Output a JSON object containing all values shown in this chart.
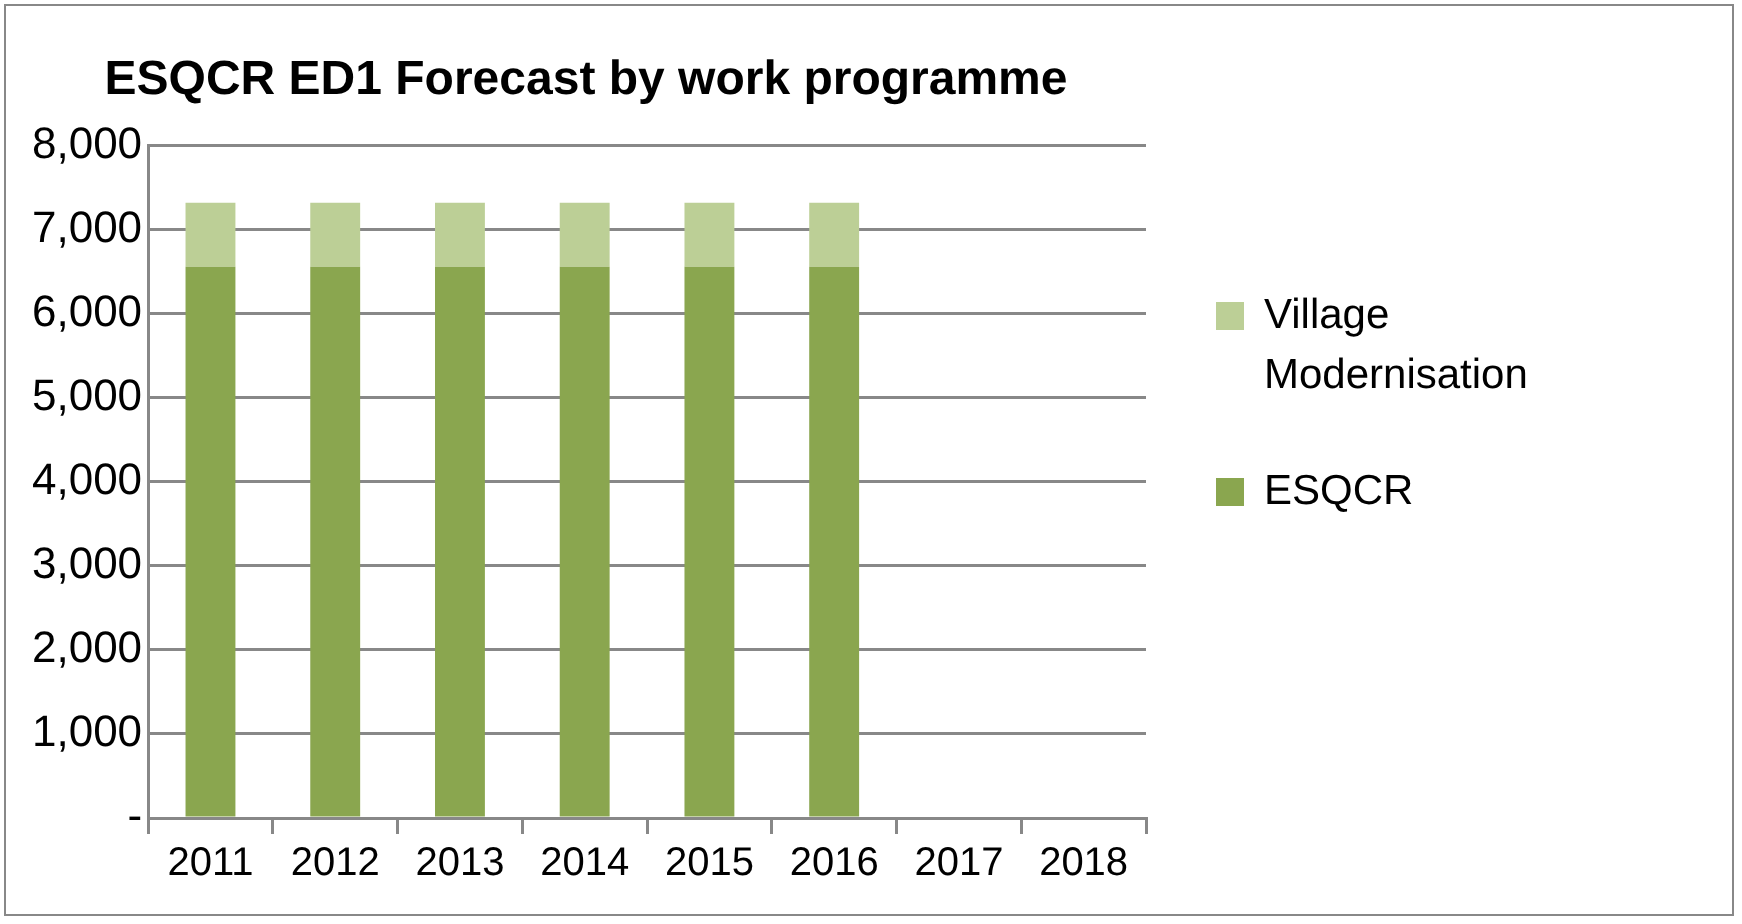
{
  "chart_data": {
    "type": "bar",
    "title": "ESQCR ED1 Forecast by work programme",
    "categories": [
      "2011",
      "2012",
      "2013",
      "2014",
      "2015",
      "2016",
      "2017",
      "2018"
    ],
    "series": [
      {
        "name": "ESQCR",
        "color": "#8aa64f",
        "values": [
          6560,
          6560,
          6560,
          6560,
          6560,
          6560,
          null,
          null
        ]
      },
      {
        "name": "Village Modernisation",
        "color": "#bccf96",
        "values": [
          760,
          760,
          760,
          760,
          760,
          760,
          null,
          null
        ]
      }
    ],
    "stacked": true,
    "ylim": [
      0,
      8000
    ],
    "yticks": [
      {
        "value": 0,
        "label": "-"
      },
      {
        "value": 1000,
        "label": "1,000"
      },
      {
        "value": 2000,
        "label": "2,000"
      },
      {
        "value": 3000,
        "label": "3,000"
      },
      {
        "value": 4000,
        "label": "4,000"
      },
      {
        "value": 5000,
        "label": "5,000"
      },
      {
        "value": 6000,
        "label": "6,000"
      },
      {
        "value": 7000,
        "label": "7,000"
      },
      {
        "value": 8000,
        "label": "8,000"
      }
    ],
    "grid": "y",
    "legend": "right"
  }
}
